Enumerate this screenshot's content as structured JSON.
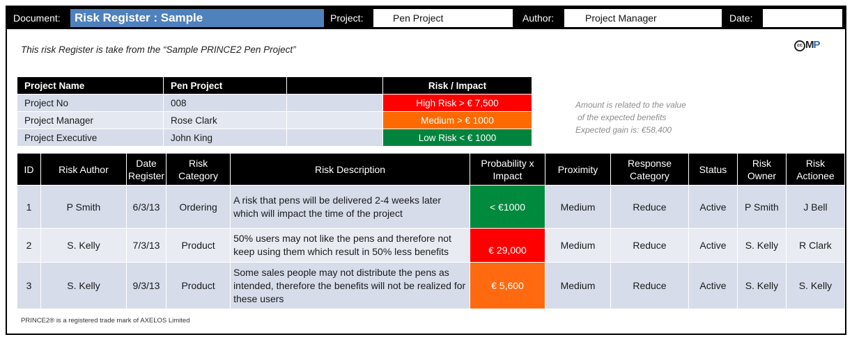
{
  "header": {
    "document_label": "Document:",
    "document_title": "Risk Register : Sample",
    "project_label": "Project:",
    "project_value": "Pen Project",
    "author_label": "Author:",
    "author_value": "Project Manager",
    "date_label": "Date:",
    "date_value": ""
  },
  "intro": "This risk Register is take from the “Sample PRINCE2 Pen Project”",
  "logo": {
    "cc": "cc",
    "m": "M",
    "p": "P"
  },
  "info": {
    "headers": [
      "Project Name",
      "Pen Project",
      "",
      "Risk  /  Impact"
    ],
    "rows": [
      {
        "label": "Project No",
        "value": "008",
        "risk": "High Risk  > € 7,500",
        "risk_color": "#ff0000"
      },
      {
        "label": "Project Manager",
        "value": "Rose Clark",
        "risk": "Medium  > € 1000",
        "risk_color": "#ff6a00"
      },
      {
        "label": "Project Executive",
        "value": "John King",
        "risk": "Low Risk < € 1000",
        "risk_color": "#00843d"
      }
    ]
  },
  "note": {
    "line1": "Amount is related to the value",
    "line2": "of the expected benefits",
    "line3": "Expected gain is:  €58,400"
  },
  "table": {
    "columns": [
      "ID",
      "Risk Author",
      "Date Register",
      "Risk Category",
      "Risk Description",
      "Probability x Impact",
      "Proximity",
      "Response Category",
      "Status",
      "Risk Owner",
      "Risk Actionee"
    ],
    "rows": [
      {
        "id": "1",
        "author": "P Smith",
        "date": "6/3/13",
        "category": "Ordering",
        "desc": "A risk that pens will be delivered 2-4 weeks later which will impact the time of the project",
        "prob": "< €1000",
        "prob_color": "#008a3e",
        "proximity": "Medium",
        "response": "Reduce",
        "status": "Active",
        "owner": "P Smith",
        "actionee": "J Bell"
      },
      {
        "id": "2",
        "author": "S. Kelly",
        "date": "7/3/13",
        "category": "Product",
        "desc": "50% users may not like the pens and therefore not keep using them which result in 50% less benefits",
        "prob": "€ 29,000",
        "prob_color": "#ff0000",
        "proximity": "Medium",
        "response": "Reduce",
        "status": "Active",
        "owner": "S. Kelly",
        "actionee": "R Clark"
      },
      {
        "id": "3",
        "author": "S. Kelly",
        "date": "9/3/13",
        "category": "Product",
        "desc": "Some sales people may not distribute the pens as intended, therefore the benefits will not be realized for these users",
        "prob": "€ 5,600",
        "prob_color": "#ff6a10",
        "proximity": "Medium",
        "response": "Reduce",
        "status": "Active",
        "owner": "S. Kelly",
        "actionee": "S. Kelly"
      }
    ]
  },
  "footer": "PRINCE2® is a registered trade mark of AXELOS Limited"
}
